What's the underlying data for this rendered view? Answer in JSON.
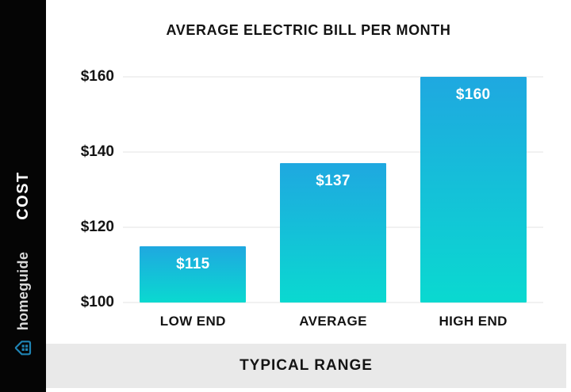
{
  "title": "AVERAGE ELECTRIC BILL PER MONTH",
  "sidebar": {
    "axis_label": "COST",
    "brand_name": "homeguide"
  },
  "footer": {
    "label": "TYPICAL RANGE"
  },
  "chart_data": {
    "type": "bar",
    "title": "AVERAGE ELECTRIC BILL PER MONTH",
    "categories": [
      "LOW END",
      "AVERAGE",
      "HIGH END"
    ],
    "values": [
      115,
      137,
      160
    ],
    "bar_labels": [
      "$115",
      "$137",
      "$160"
    ],
    "yticks": [
      100,
      120,
      140,
      160
    ],
    "ytick_labels": [
      "$100",
      "$120",
      "$140",
      "$160"
    ],
    "ylim": [
      100,
      160
    ],
    "xlabel": "TYPICAL RANGE",
    "ylabel": "COST",
    "grid": true,
    "legend": "none",
    "bar_gradient_top": "#1fa8e0",
    "bar_gradient_bottom": "#0ad9d0"
  },
  "colors": {
    "sidebar_bg": "#050505",
    "footer_bg": "#e9e9e9",
    "text": "#141414",
    "gridline": "#f1f1f1",
    "bar_label": "#ffffff",
    "brand_text": "#d9d9d9",
    "brand_icon": "#1f84b4"
  }
}
